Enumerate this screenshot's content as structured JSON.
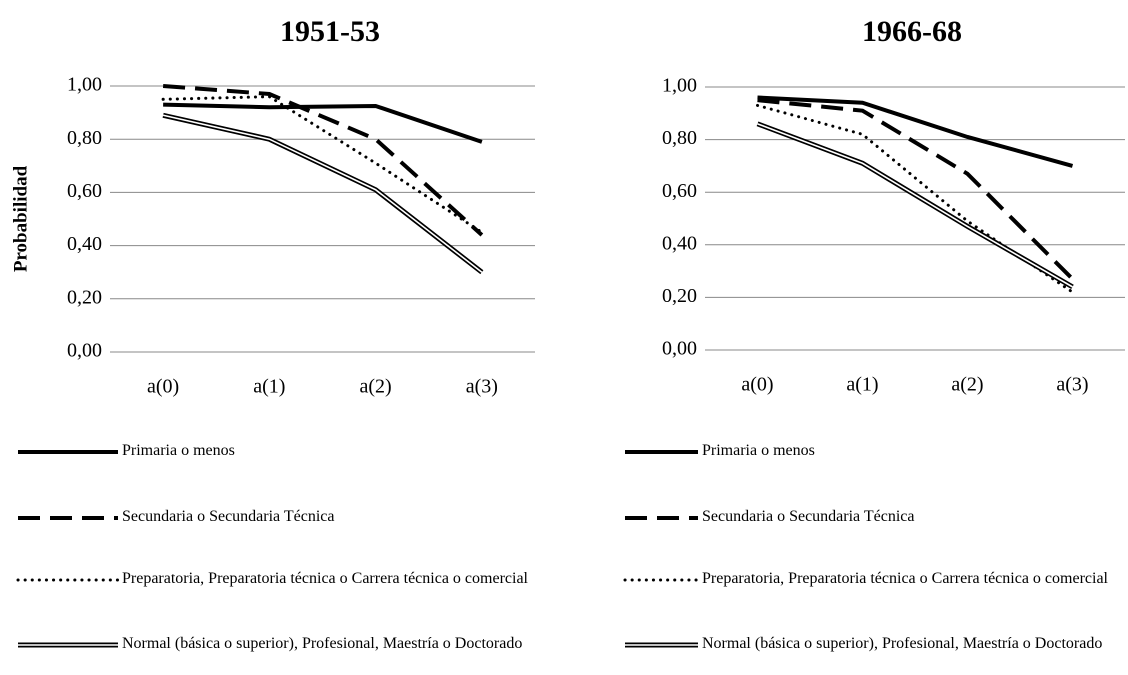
{
  "chart_data": [
    {
      "type": "line",
      "title": "1951-53",
      "y_label": "Probabilidad",
      "categories": [
        "a(0)",
        "a(1)",
        "a(2)",
        "a(3)"
      ],
      "ylim": [
        0,
        1
      ],
      "yticks": [
        {
          "value": 0,
          "label": "0,00"
        },
        {
          "value": 0.2,
          "label": "0,20"
        },
        {
          "value": 0.4,
          "label": "0,40"
        },
        {
          "value": 0.6,
          "label": "0,60"
        },
        {
          "value": 0.8,
          "label": "0,80"
        },
        {
          "value": 1,
          "label": "1,00"
        }
      ],
      "grid": true,
      "series": [
        {
          "name": "Primaria o menos",
          "color": "#000000",
          "line_style": "solid",
          "values": [
            0.93,
            0.92,
            0.925,
            0.79
          ]
        },
        {
          "name": "Secundaria o Secundaria Técnica",
          "color": "#000000",
          "line_style": "dash",
          "values": [
            1.0,
            0.97,
            0.8,
            0.44
          ]
        },
        {
          "name": "Preparatoria, Preparatoria técnica o Carrera técnica o comercial",
          "color": "#000000",
          "line_style": "dot",
          "values": [
            0.95,
            0.96,
            0.71,
            0.45
          ]
        },
        {
          "name": "Normal (básica o superior), Profesional, Maestría o Doctorado",
          "color": "#000000",
          "line_style": "double",
          "values": [
            0.89,
            0.8,
            0.61,
            0.3
          ]
        }
      ]
    },
    {
      "type": "line",
      "title": "1966-68",
      "categories": [
        "a(0)",
        "a(1)",
        "a(2)",
        "a(3)"
      ],
      "ylim": [
        0,
        1
      ],
      "yticks": [
        {
          "value": 0,
          "label": "0,00"
        },
        {
          "value": 0.2,
          "label": "0,20"
        },
        {
          "value": 0.4,
          "label": "0,40"
        },
        {
          "value": 0.6,
          "label": "0,60"
        },
        {
          "value": 0.8,
          "label": "0,80"
        },
        {
          "value": 1,
          "label": "1,00"
        }
      ],
      "grid": true,
      "series": [
        {
          "name": "Primaria o menos",
          "color": "#000000",
          "line_style": "solid",
          "values": [
            0.96,
            0.94,
            0.81,
            0.7
          ]
        },
        {
          "name": "Secundaria o Secundaria Técnica",
          "color": "#000000",
          "line_style": "dash",
          "values": [
            0.95,
            0.91,
            0.67,
            0.27
          ]
        },
        {
          "name": "Preparatoria, Preparatoria técnica o Carrera técnica o comercial",
          "color": "#000000",
          "line_style": "dot",
          "values": [
            0.93,
            0.82,
            0.49,
            0.22
          ]
        },
        {
          "name": "Normal (básica o superior), Profesional, Maestría o Doctorado",
          "color": "#000000",
          "line_style": "double",
          "values": [
            0.86,
            0.71,
            0.47,
            0.24
          ]
        }
      ]
    }
  ]
}
